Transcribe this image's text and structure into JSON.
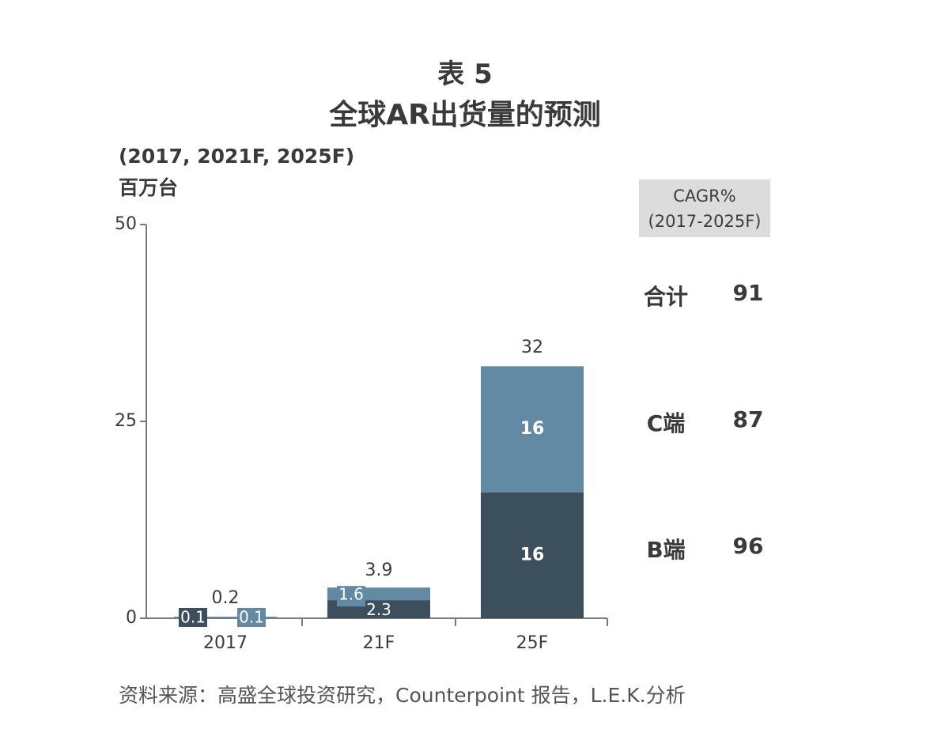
{
  "header": {
    "title_line1": "表 5",
    "title_line2": "全球AR出货量的预测",
    "subtitle_line1": "(2017, 2021F, 2025F)",
    "subtitle_line2": "百万台"
  },
  "cagr": {
    "header_line1": "CAGR%",
    "header_line2": "(2017-2025F)",
    "rows": [
      {
        "label": "合计",
        "value": "91"
      },
      {
        "label": "C端",
        "value": "87"
      },
      {
        "label": "B端",
        "value": "96"
      }
    ]
  },
  "chart_data": {
    "type": "bar",
    "stacked": true,
    "categories": [
      "2017",
      "21F",
      "25F"
    ],
    "ylim": [
      0,
      50
    ],
    "yticks": [
      0,
      25,
      50
    ],
    "series": [
      {
        "values": [
          0.1,
          2.3,
          16
        ],
        "labels": [
          "0.1",
          "2.3",
          "16"
        ],
        "color": "#3b4f5c"
      },
      {
        "values": [
          0.1,
          1.6,
          16
        ],
        "labels": [
          "0.1",
          "1.6",
          "16"
        ],
        "color": "#638aa5"
      }
    ],
    "totals": [
      "0.2",
      "3.9",
      "32"
    ],
    "colors": {
      "axis": "#7a7a7a",
      "text": "#3b3b3b",
      "bar_label": "#ffffff"
    }
  },
  "source": "资料来源：高盛全球投资研究，Counterpoint 报告，L.E.K.分析"
}
